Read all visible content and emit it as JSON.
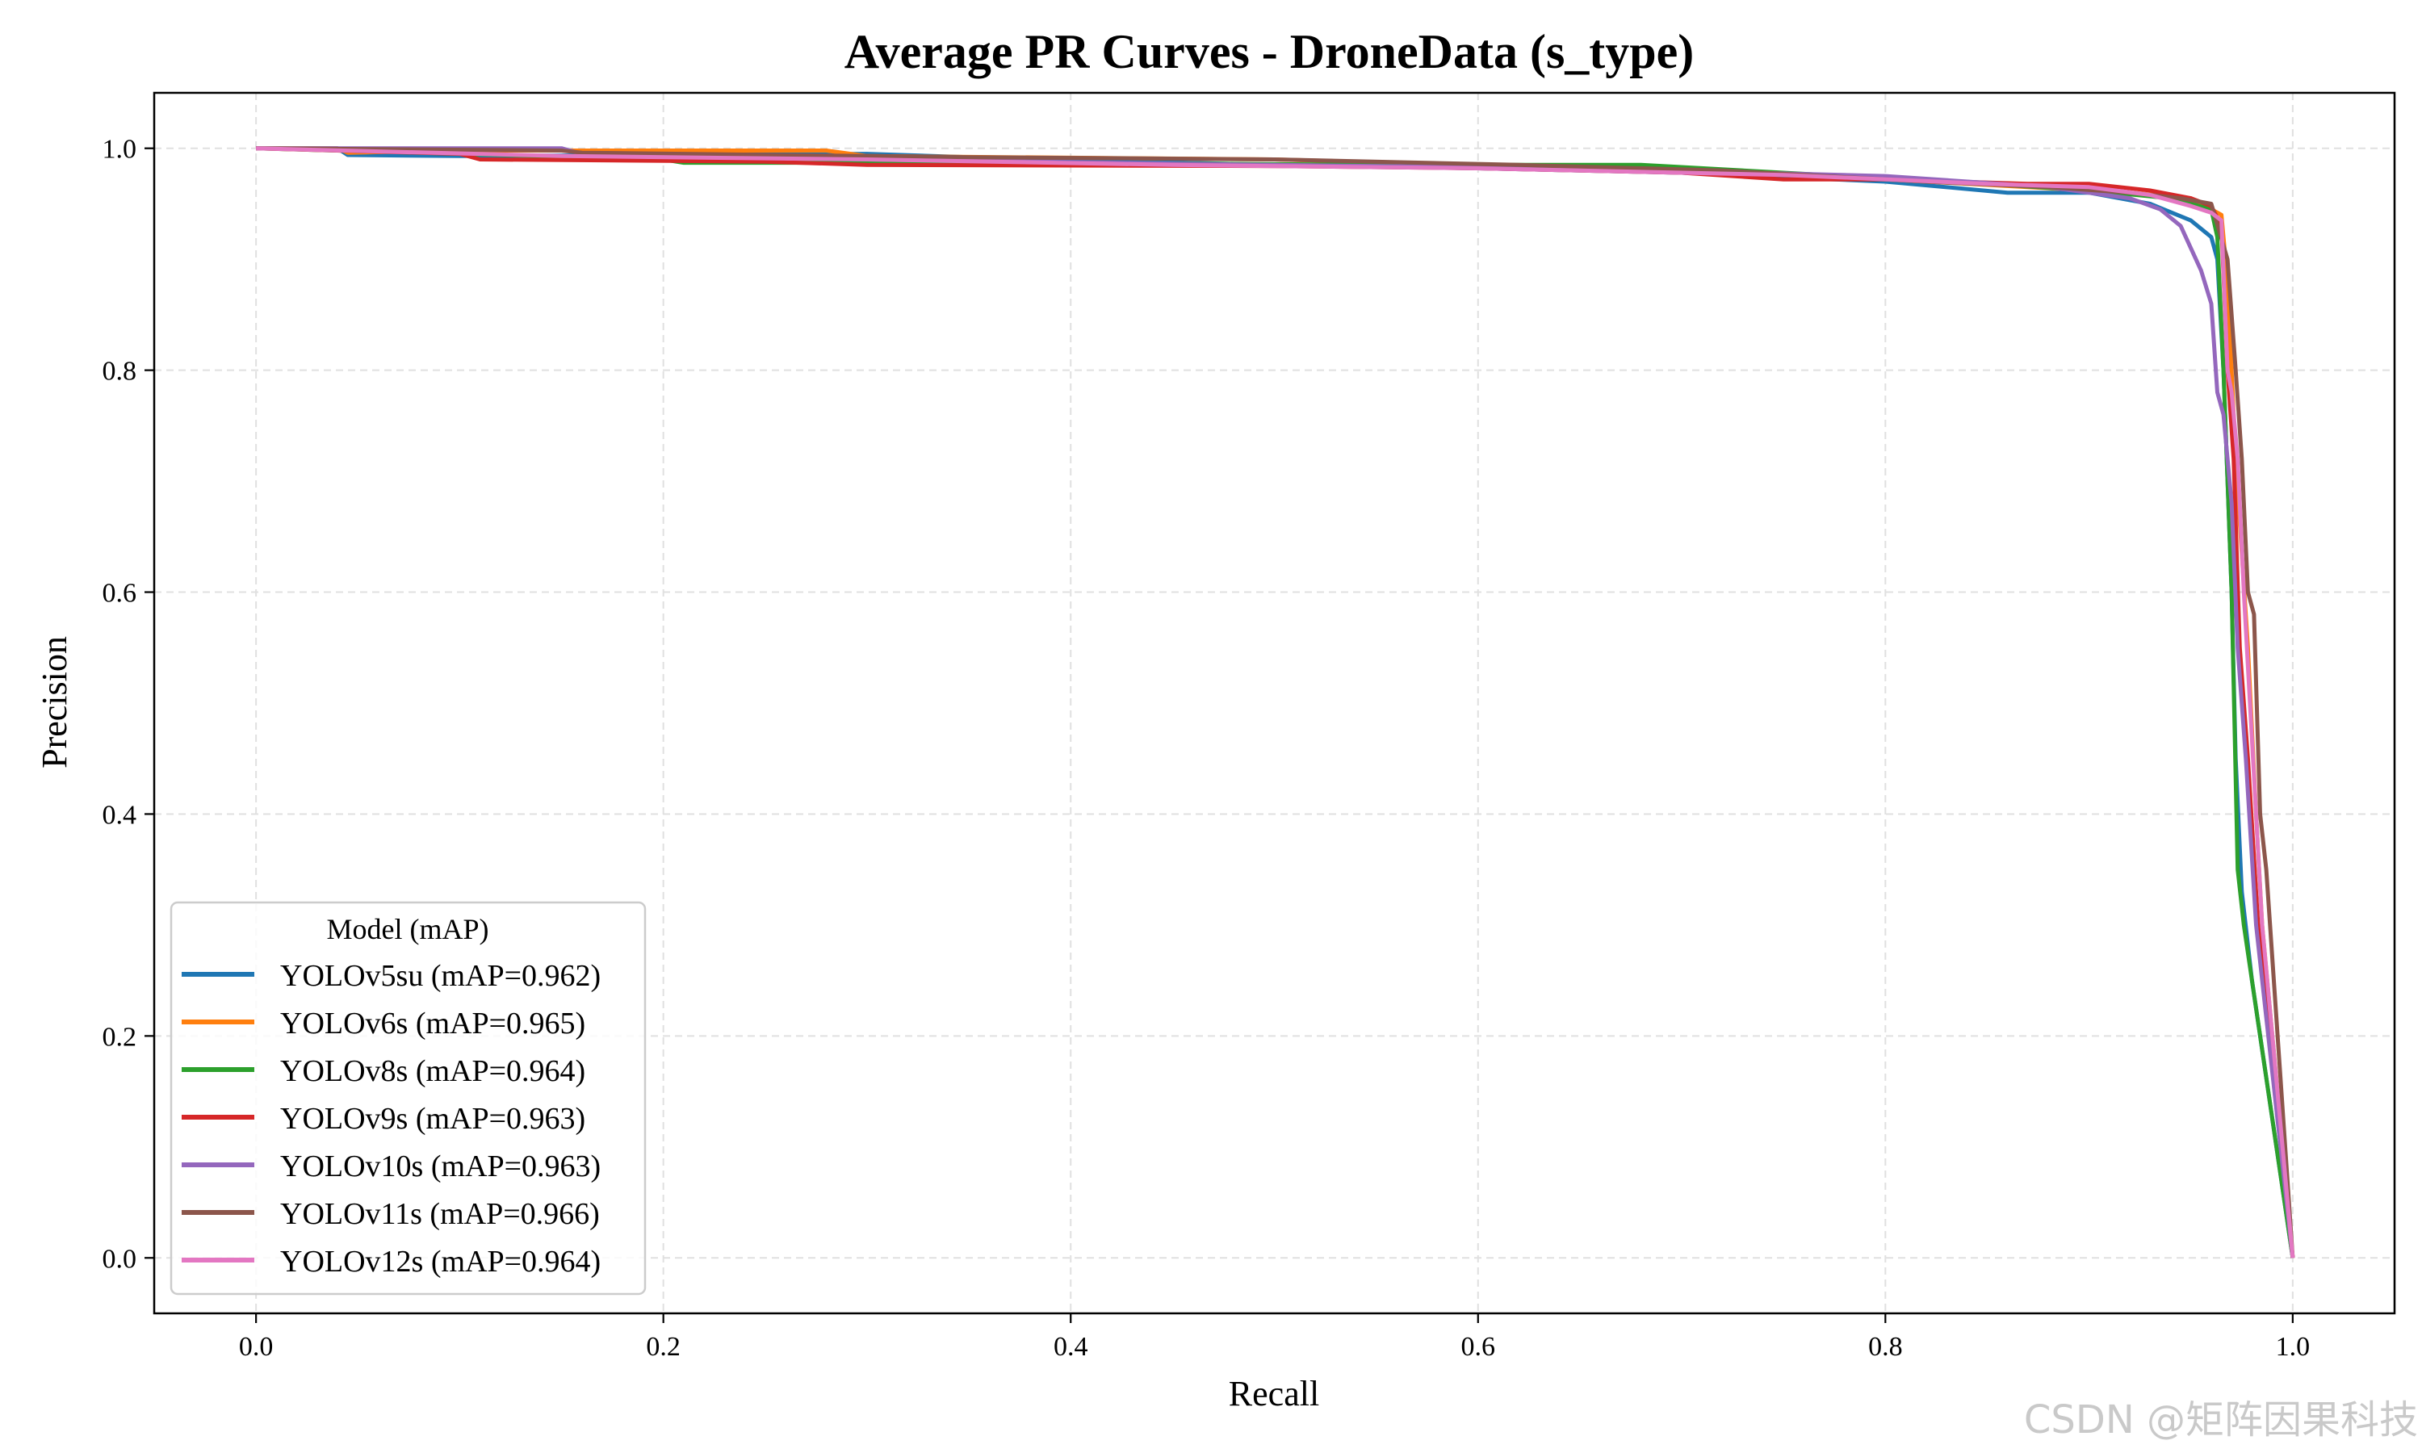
{
  "chart_data": {
    "type": "line",
    "title": "Average PR Curves - DroneData (s_type)",
    "xlabel": "Recall",
    "ylabel": "Precision",
    "xlim": [
      -0.05,
      1.05
    ],
    "ylim": [
      -0.05,
      1.05
    ],
    "xticks": [
      0.0,
      0.2,
      0.4,
      0.6,
      0.8,
      1.0
    ],
    "xtick_labels": [
      "0.0",
      "0.2",
      "0.4",
      "0.6",
      "0.8",
      "1.0"
    ],
    "yticks": [
      0.0,
      0.2,
      0.4,
      0.6,
      0.8,
      1.0
    ],
    "ytick_labels": [
      "0.0",
      "0.2",
      "0.4",
      "0.6",
      "0.8",
      "1.0"
    ],
    "grid": true,
    "legend": {
      "title": "Model (mAP)",
      "location": "lower-left"
    },
    "series": [
      {
        "name": "YOLOv5su (mAP=0.962)",
        "color": "#1f77b4",
        "x": [
          0.0,
          0.04,
          0.045,
          0.1,
          0.3,
          0.35,
          0.5,
          0.6,
          0.7,
          0.8,
          0.86,
          0.9,
          0.93,
          0.95,
          0.96,
          0.963,
          0.966,
          0.97,
          0.972,
          0.975,
          0.98,
          1.0
        ],
        "y": [
          1.0,
          1.0,
          0.994,
          0.993,
          0.995,
          0.992,
          0.985,
          0.982,
          0.978,
          0.97,
          0.96,
          0.96,
          0.95,
          0.935,
          0.92,
          0.9,
          0.8,
          0.6,
          0.45,
          0.33,
          0.25,
          0.0
        ]
      },
      {
        "name": "YOLOv6s (mAP=0.965)",
        "color": "#ff7f0e",
        "x": [
          0.0,
          0.04,
          0.045,
          0.1,
          0.28,
          0.3,
          0.5,
          0.6,
          0.7,
          0.8,
          0.87,
          0.92,
          0.95,
          0.965,
          0.968,
          0.972,
          0.978,
          0.982,
          0.985,
          1.0
        ],
        "y": [
          1.0,
          1.0,
          0.996,
          0.998,
          0.998,
          0.993,
          0.99,
          0.985,
          0.98,
          0.972,
          0.965,
          0.96,
          0.955,
          0.94,
          0.88,
          0.72,
          0.55,
          0.4,
          0.3,
          0.0
        ]
      },
      {
        "name": "YOLOv8s (mAP=0.964)",
        "color": "#2ca02c",
        "x": [
          0.0,
          0.1,
          0.2,
          0.21,
          0.4,
          0.55,
          0.68,
          0.75,
          0.85,
          0.9,
          0.94,
          0.96,
          0.963,
          0.966,
          0.97,
          0.973,
          0.976,
          0.98,
          1.0
        ],
        "y": [
          1.0,
          0.995,
          0.99,
          0.987,
          0.987,
          0.985,
          0.985,
          0.978,
          0.968,
          0.962,
          0.955,
          0.945,
          0.92,
          0.8,
          0.6,
          0.35,
          0.3,
          0.25,
          0.0
        ]
      },
      {
        "name": "YOLOv9s (mAP=0.963)",
        "color": "#d62728",
        "x": [
          0.0,
          0.1,
          0.11,
          0.25,
          0.3,
          0.5,
          0.6,
          0.7,
          0.75,
          0.8,
          0.87,
          0.9,
          0.93,
          0.95,
          0.96,
          0.965,
          0.968,
          0.971,
          0.974,
          0.978,
          0.983,
          1.0
        ],
        "y": [
          1.0,
          0.995,
          0.99,
          0.988,
          0.985,
          0.984,
          0.982,
          0.978,
          0.972,
          0.972,
          0.968,
          0.968,
          0.962,
          0.955,
          0.948,
          0.93,
          0.8,
          0.72,
          0.55,
          0.45,
          0.3,
          0.0
        ]
      },
      {
        "name": "YOLOv10s (mAP=0.963)",
        "color": "#9467bd",
        "x": [
          0.0,
          0.07,
          0.15,
          0.16,
          0.3,
          0.5,
          0.65,
          0.8,
          0.88,
          0.92,
          0.935,
          0.945,
          0.95,
          0.955,
          0.96,
          0.963,
          0.966,
          0.97,
          0.973,
          0.977,
          0.982,
          1.0
        ],
        "y": [
          1.0,
          1.0,
          1.0,
          0.995,
          0.99,
          0.985,
          0.982,
          0.975,
          0.965,
          0.955,
          0.945,
          0.93,
          0.91,
          0.89,
          0.86,
          0.78,
          0.76,
          0.68,
          0.55,
          0.45,
          0.3,
          0.0
        ]
      },
      {
        "name": "YOLOv11s (mAP=0.966)",
        "color": "#8c564b",
        "x": [
          0.0,
          0.15,
          0.16,
          0.35,
          0.5,
          0.62,
          0.72,
          0.82,
          0.88,
          0.92,
          0.945,
          0.96,
          0.968,
          0.972,
          0.975,
          0.978,
          0.981,
          0.984,
          0.987,
          1.0
        ],
        "y": [
          1.0,
          0.998,
          0.996,
          0.992,
          0.99,
          0.985,
          0.98,
          0.97,
          0.965,
          0.96,
          0.955,
          0.95,
          0.9,
          0.8,
          0.72,
          0.6,
          0.58,
          0.4,
          0.35,
          0.0
        ]
      },
      {
        "name": "YOLOv12s (mAP=0.964)",
        "color": "#e377c2",
        "x": [
          0.0,
          0.15,
          0.3,
          0.45,
          0.6,
          0.75,
          0.85,
          0.9,
          0.93,
          0.95,
          0.96,
          0.965,
          0.968,
          0.97,
          0.973,
          0.976,
          0.979,
          0.982,
          0.985,
          1.0
        ],
        "y": [
          1.0,
          0.993,
          0.99,
          0.985,
          0.982,
          0.976,
          0.968,
          0.965,
          0.958,
          0.948,
          0.942,
          0.935,
          0.8,
          0.78,
          0.72,
          0.6,
          0.5,
          0.4,
          0.3,
          0.0
        ]
      }
    ]
  },
  "watermark": "CSDN @矩阵因果科技"
}
